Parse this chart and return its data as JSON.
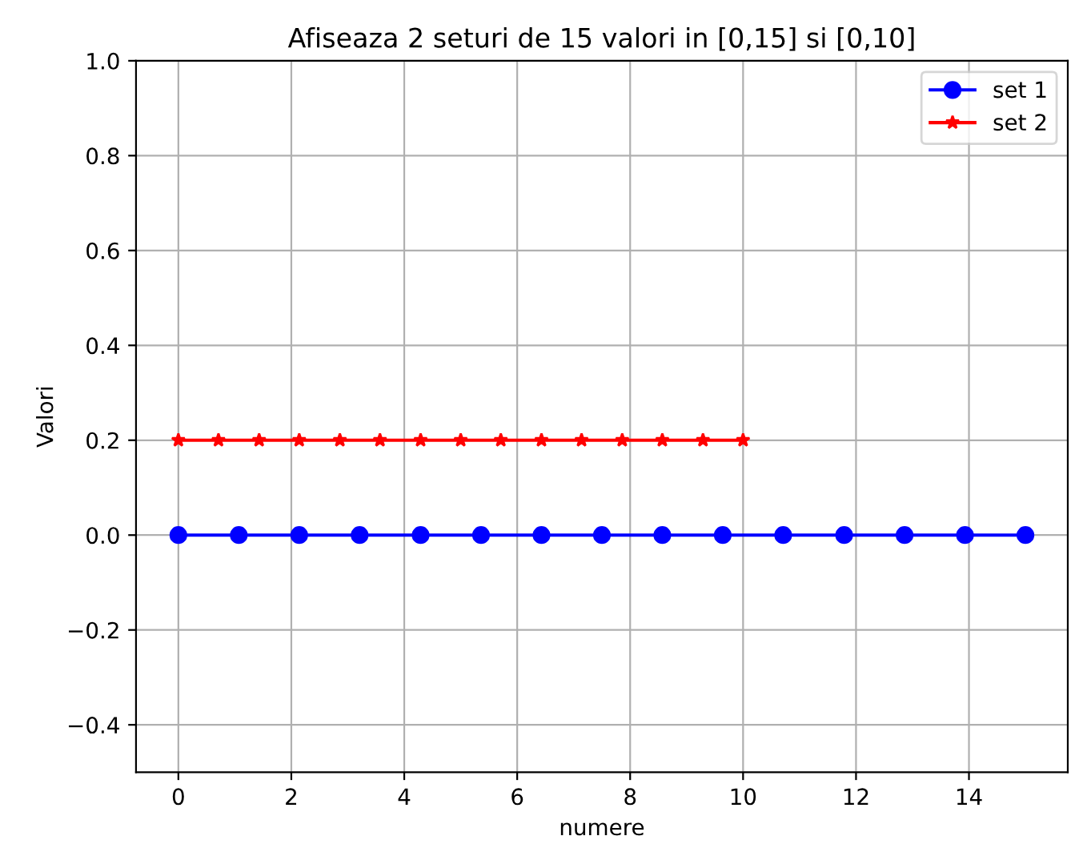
{
  "chart_data": {
    "type": "line",
    "title": "Afiseaza 2 seturi de 15 valori in [0,15] si [0,10]",
    "xlabel": "numere",
    "ylabel": "Valori",
    "series": [
      {
        "name": "set 1",
        "color": "#0000ff",
        "marker": "circle",
        "x": [
          0,
          1.07,
          2.14,
          3.21,
          4.29,
          5.36,
          6.43,
          7.5,
          8.57,
          9.64,
          10.71,
          11.79,
          12.86,
          13.93,
          15
        ],
        "values": [
          0,
          0,
          0,
          0,
          0,
          0,
          0,
          0,
          0,
          0,
          0,
          0,
          0,
          0,
          0
        ]
      },
      {
        "name": "set 2",
        "color": "#ff0000",
        "marker": "star",
        "x": [
          0,
          0.71,
          1.43,
          2.14,
          2.86,
          3.57,
          4.29,
          5,
          5.71,
          6.43,
          7.14,
          7.86,
          8.57,
          9.29,
          10
        ],
        "values": [
          0.2,
          0.2,
          0.2,
          0.2,
          0.2,
          0.2,
          0.2,
          0.2,
          0.2,
          0.2,
          0.2,
          0.2,
          0.2,
          0.2,
          0.2
        ]
      }
    ],
    "xlim": [
      -0.75,
      15.75
    ],
    "xticks": [
      0,
      2,
      4,
      6,
      8,
      10,
      12,
      14
    ],
    "ylim": [
      -0.5,
      1.0
    ],
    "yticks": [
      {
        "value": -0.4,
        "label": "−0.4"
      },
      {
        "value": -0.2,
        "label": "−0.2"
      },
      {
        "value": 0,
        "label": "0.0"
      },
      0.2,
      0.4,
      0.6,
      0.8,
      {
        "value": 1,
        "label": "1.0"
      }
    ],
    "grid": true,
    "legend": "top right",
    "line_style": "solid"
  }
}
